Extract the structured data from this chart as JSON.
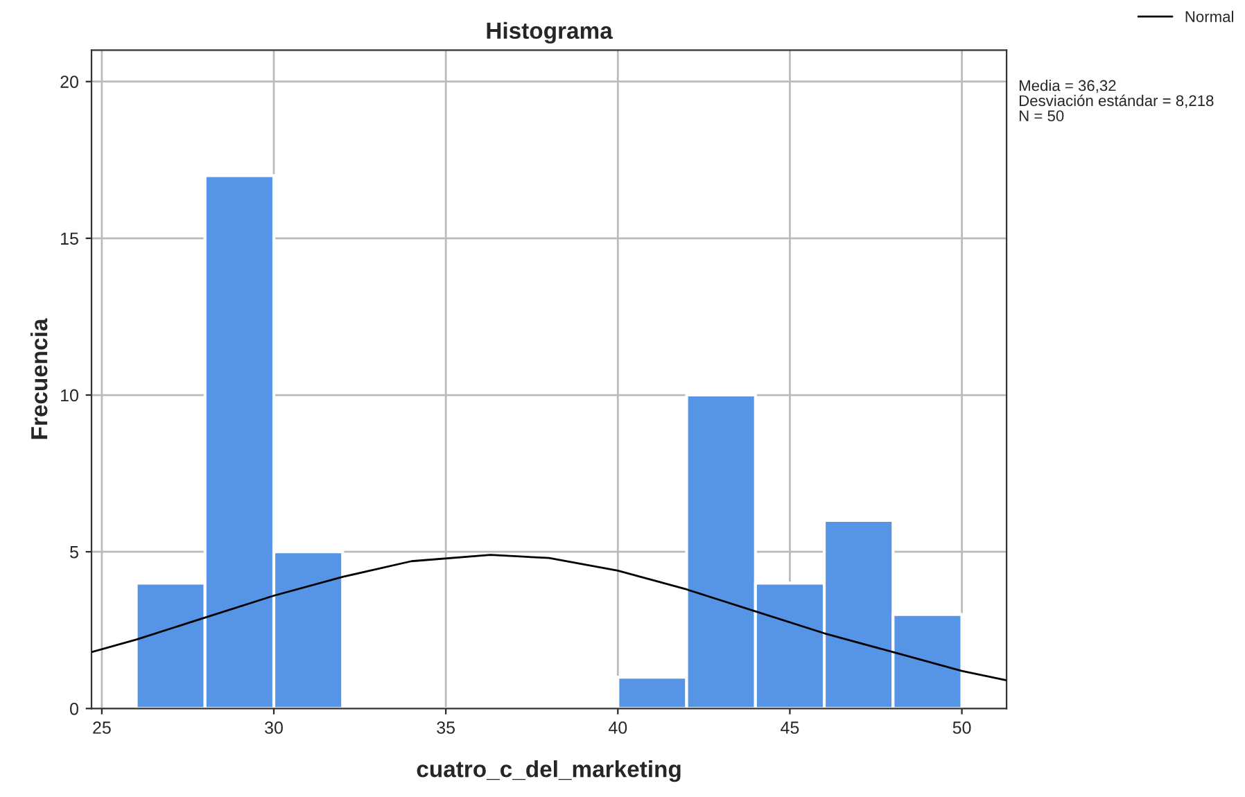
{
  "chart_data": {
    "type": "histogram",
    "title": "Histograma",
    "xlabel": "cuatro_c_del_marketing",
    "ylabel": "Frecuencia",
    "bins": [
      26,
      28,
      30,
      32,
      34,
      36,
      38,
      40,
      42,
      44,
      46,
      48,
      50
    ],
    "values": [
      4,
      17,
      5,
      0,
      0,
      0,
      0,
      1,
      10,
      4,
      6,
      3
    ],
    "color": "#5694e6",
    "series": [
      {
        "type": "line",
        "name": "Normal",
        "color": "#000000",
        "x": [
          24.7,
          26,
          28,
          30,
          32,
          34,
          36.3,
          38,
          40,
          42,
          44,
          46,
          48,
          50,
          51.3
        ],
        "values": [
          1.8,
          2.2,
          2.9,
          3.6,
          4.2,
          4.7,
          4.9,
          4.8,
          4.4,
          3.8,
          3.1,
          2.4,
          1.8,
          1.2,
          0.9
        ]
      }
    ],
    "xlim": [
      24.7,
      51.3
    ],
    "xticks": [
      25,
      30,
      35,
      40,
      45,
      50
    ],
    "ylim": [
      0,
      21
    ],
    "yticks": [
      0,
      5,
      10,
      15,
      20
    ],
    "grid": true,
    "legend": "top right",
    "annotations": [
      "Media = 36,32",
      "Desviación estándar = 8,218",
      "N = 50"
    ]
  }
}
